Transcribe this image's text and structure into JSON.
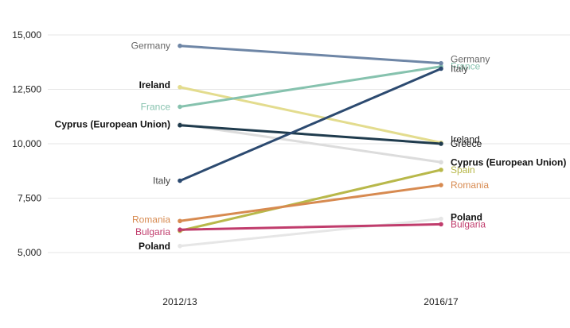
{
  "chart_data": {
    "type": "line",
    "title": "",
    "xlabel": "",
    "ylabel": "",
    "x": [
      "2012/13",
      "2016/17"
    ],
    "ylim": [
      3250,
      16000
    ],
    "yticks": [
      5000,
      7500,
      10000,
      12500,
      15000
    ],
    "ytick_labels": [
      "5,000",
      "7,500",
      "10,000",
      "12,500",
      "15,000"
    ],
    "grid": true,
    "legend": "none",
    "series": [
      {
        "name": "Germany",
        "values": [
          14500,
          13700
        ],
        "color": "#6e86a6",
        "label_color": "#666666"
      },
      {
        "name": "France",
        "values": [
          11700,
          13550
        ],
        "color": "#86c2ae",
        "label_color": "#86c2ae"
      },
      {
        "name": "Ireland",
        "values": [
          12600,
          10050
        ],
        "color": "#e3dc8e",
        "label_color": "#111111"
      },
      {
        "name": "Cyprus (European Union)",
        "values": [
          10900,
          9150
        ],
        "color": "#dcdcdc",
        "label_color": "#111111"
      },
      {
        "name": "Greece",
        "values": [
          10850,
          10000
        ],
        "color": "#1f3b4d",
        "label_color": "#111111"
      },
      {
        "name": "Italy",
        "values": [
          8300,
          13450
        ],
        "color": "#2c4a70",
        "label_color": "#444444"
      },
      {
        "name": "Spain",
        "values": [
          6000,
          8800
        ],
        "color": "#b8b84a",
        "label_color": "#b8b84a"
      },
      {
        "name": "Romania",
        "values": [
          6450,
          8100
        ],
        "color": "#d78a50",
        "label_color": "#d78a50"
      },
      {
        "name": "Bulgaria",
        "values": [
          6050,
          6300
        ],
        "color": "#c03c6c",
        "label_color": "#c03c6c"
      },
      {
        "name": "Poland",
        "values": [
          5300,
          6550
        ],
        "color": "#e6e6e6",
        "label_color": "#111111"
      }
    ],
    "left_labels": [
      {
        "series": "Germany",
        "text": "Germany"
      },
      {
        "series": "Ireland",
        "text": "Ireland"
      },
      {
        "series": "France",
        "text": "France"
      },
      {
        "series": "Cyprus (European Union)",
        "text": "Cyprus (European Union)"
      },
      {
        "series": "Italy",
        "text": "Italy"
      },
      {
        "series": "Romania",
        "text": "Romania"
      },
      {
        "series": "Bulgaria",
        "text": "Bulgaria"
      },
      {
        "series": "Poland",
        "text": "Poland"
      }
    ],
    "right_labels": [
      {
        "series": "Germany",
        "text": "Germany"
      },
      {
        "series": "France",
        "text": "France"
      },
      {
        "series": "Italy",
        "text": "Italy"
      },
      {
        "series": "Ireland",
        "text": "Ireland"
      },
      {
        "series": "Greece",
        "text": "Greece"
      },
      {
        "series": "Cyprus (European Union)",
        "text": "Cyprus (European Union)"
      },
      {
        "series": "Spain",
        "text": "Spain"
      },
      {
        "series": "Romania",
        "text": "Romania"
      },
      {
        "series": "Poland",
        "text": "Poland"
      },
      {
        "series": "Bulgaria",
        "text": "Bulgaria"
      }
    ]
  }
}
